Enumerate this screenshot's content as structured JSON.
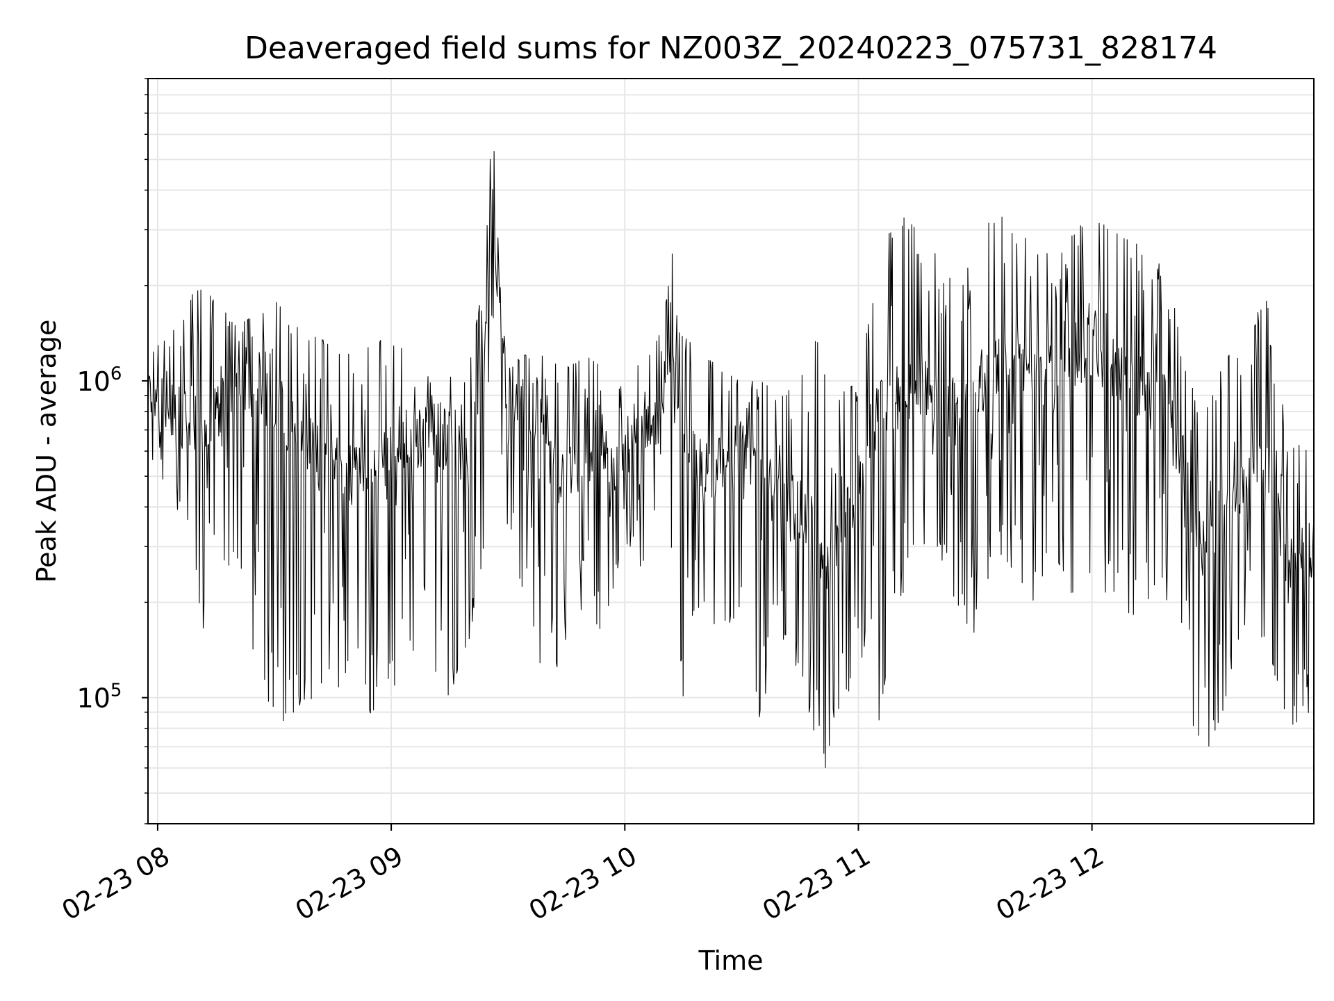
{
  "chart_data": {
    "type": "line",
    "title": "Deaveraged field sums for NZ003Z_20240223_075731_828174",
    "xlabel": "Time",
    "ylabel": "Peak ADU - average",
    "x_axis": {
      "type": "time",
      "range": [
        "2024-02-23T07:57:31",
        "2024-02-23T12:57:00"
      ],
      "ticks": [
        {
          "label": "02-23 08",
          "value": "2024-02-23T08:00:00"
        },
        {
          "label": "02-23 09",
          "value": "2024-02-23T09:00:00"
        },
        {
          "label": "02-23 10",
          "value": "2024-02-23T10:00:00"
        },
        {
          "label": "02-23 11",
          "value": "2024-02-23T11:00:00"
        },
        {
          "label": "02-23 12",
          "value": "2024-02-23T12:00:00"
        }
      ]
    },
    "y_axis": {
      "scale": "log",
      "range": [
        40000,
        9000000
      ],
      "ticks": [
        {
          "base": "10",
          "exp": "5",
          "value": 100000
        },
        {
          "base": "10",
          "exp": "6",
          "value": 1000000
        }
      ]
    },
    "grid": true,
    "legend": "none",
    "line_color": "#000000",
    "series": [
      {
        "x": [
          "2024-02-23T07:57:31",
          "2024-02-23T08:05:00",
          "2024-02-23T08:10:00",
          "2024-02-23T08:15:00",
          "2024-02-23T08:20:00",
          "2024-02-23T08:25:00",
          "2024-02-23T08:31:00",
          "2024-02-23T08:35:00",
          "2024-02-23T08:40:00",
          "2024-02-23T08:45:00",
          "2024-02-23T08:50:00",
          "2024-02-23T08:55:00",
          "2024-02-23T09:00:00",
          "2024-02-23T09:05:00",
          "2024-02-23T09:10:00",
          "2024-02-23T09:15:00",
          "2024-02-23T09:20:00",
          "2024-02-23T09:24:00",
          "2024-02-23T09:26:00",
          "2024-02-23T09:28:00",
          "2024-02-23T09:30:00",
          "2024-02-23T09:35:00",
          "2024-02-23T09:40:00",
          "2024-02-23T09:45:00",
          "2024-02-23T09:50:00",
          "2024-02-23T09:55:00",
          "2024-02-23T10:00:00",
          "2024-02-23T10:05:00",
          "2024-02-23T10:10:00",
          "2024-02-23T10:12:00",
          "2024-02-23T10:15:00",
          "2024-02-23T10:20:00",
          "2024-02-23T10:25:00",
          "2024-02-23T10:30:00",
          "2024-02-23T10:35:00",
          "2024-02-23T10:40:00",
          "2024-02-23T10:45:00",
          "2024-02-23T10:50:00",
          "2024-02-23T10:52:00",
          "2024-02-23T10:55:00",
          "2024-02-23T11:00:00",
          "2024-02-23T11:05:00",
          "2024-02-23T11:10:00",
          "2024-02-23T11:15:00",
          "2024-02-23T11:20:00",
          "2024-02-23T11:25:00",
          "2024-02-23T11:30:00",
          "2024-02-23T11:35:00",
          "2024-02-23T11:40:00",
          "2024-02-23T11:45:00",
          "2024-02-23T11:50:00",
          "2024-02-23T11:55:00",
          "2024-02-23T12:00:00",
          "2024-02-23T12:05:00",
          "2024-02-23T12:10:00",
          "2024-02-23T12:15:00",
          "2024-02-23T12:20:00",
          "2024-02-23T12:25:00",
          "2024-02-23T12:30:00",
          "2024-02-23T12:35:00",
          "2024-02-23T12:40:00",
          "2024-02-23T12:45:00",
          "2024-02-23T12:50:00",
          "2024-02-23T12:57:00"
        ],
        "values": [
          900000,
          800000,
          700000,
          750000,
          900000,
          1000000,
          800000,
          700000,
          650000,
          600000,
          500000,
          550000,
          600000,
          650000,
          700000,
          650000,
          600000,
          1200000,
          4000000,
          1500000,
          800000,
          600000,
          550000,
          500000,
          600000,
          550000,
          600000,
          650000,
          700000,
          1600000,
          600000,
          500000,
          550000,
          600000,
          550000,
          500000,
          400000,
          300000,
          250000,
          350000,
          450000,
          800000,
          900000,
          1000000,
          900000,
          800000,
          1000000,
          1100000,
          1200000,
          1100000,
          1000000,
          1200000,
          1300000,
          1100000,
          1000000,
          900000,
          800000,
          300000,
          350000,
          400000,
          500000,
          600000,
          250000,
          300000
        ],
        "min": [
          600000,
          400000,
          150000,
          200000,
          300000,
          120000,
          80000,
          90000,
          100000,
          120000,
          80000,
          90000,
          100000,
          150000,
          90000,
          100000,
          150000,
          300000,
          1500000,
          700000,
          300000,
          200000,
          100000,
          150000,
          200000,
          150000,
          300000,
          250000,
          90000,
          300000,
          100000,
          200000,
          150000,
          200000,
          80000,
          150000,
          120000,
          60000,
          60000,
          70000,
          150000,
          80000,
          200000,
          250000,
          300000,
          200000,
          150000,
          300000,
          250000,
          200000,
          300000,
          200000,
          250000,
          200000,
          180000,
          200000,
          200000,
          80000,
          70000,
          100000,
          150000,
          150000,
          80000,
          90000
        ],
        "max": [
          1200000,
          1500000,
          2000000,
          1800000,
          1500000,
          1600000,
          1800000,
          1500000,
          1400000,
          1300000,
          1200000,
          1300000,
          1400000,
          1200000,
          1100000,
          1200000,
          1100000,
          2200000,
          7000000,
          2000000,
          1300000,
          1200000,
          1200000,
          1100000,
          1200000,
          1100000,
          1100000,
          1200000,
          1500000,
          2700000,
          1400000,
          1200000,
          1100000,
          1000000,
          1000000,
          900000,
          1000000,
          1500000,
          1200000,
          900000,
          1000000,
          2300000,
          3500000,
          3000000,
          2500000,
          2000000,
          2500000,
          3500000,
          3000000,
          2800000,
          2500000,
          3000000,
          3300000,
          3000000,
          2800000,
          2500000,
          2200000,
          1000000,
          900000,
          1200000,
          1500000,
          1800000,
          700000,
          600000
        ]
      }
    ]
  }
}
